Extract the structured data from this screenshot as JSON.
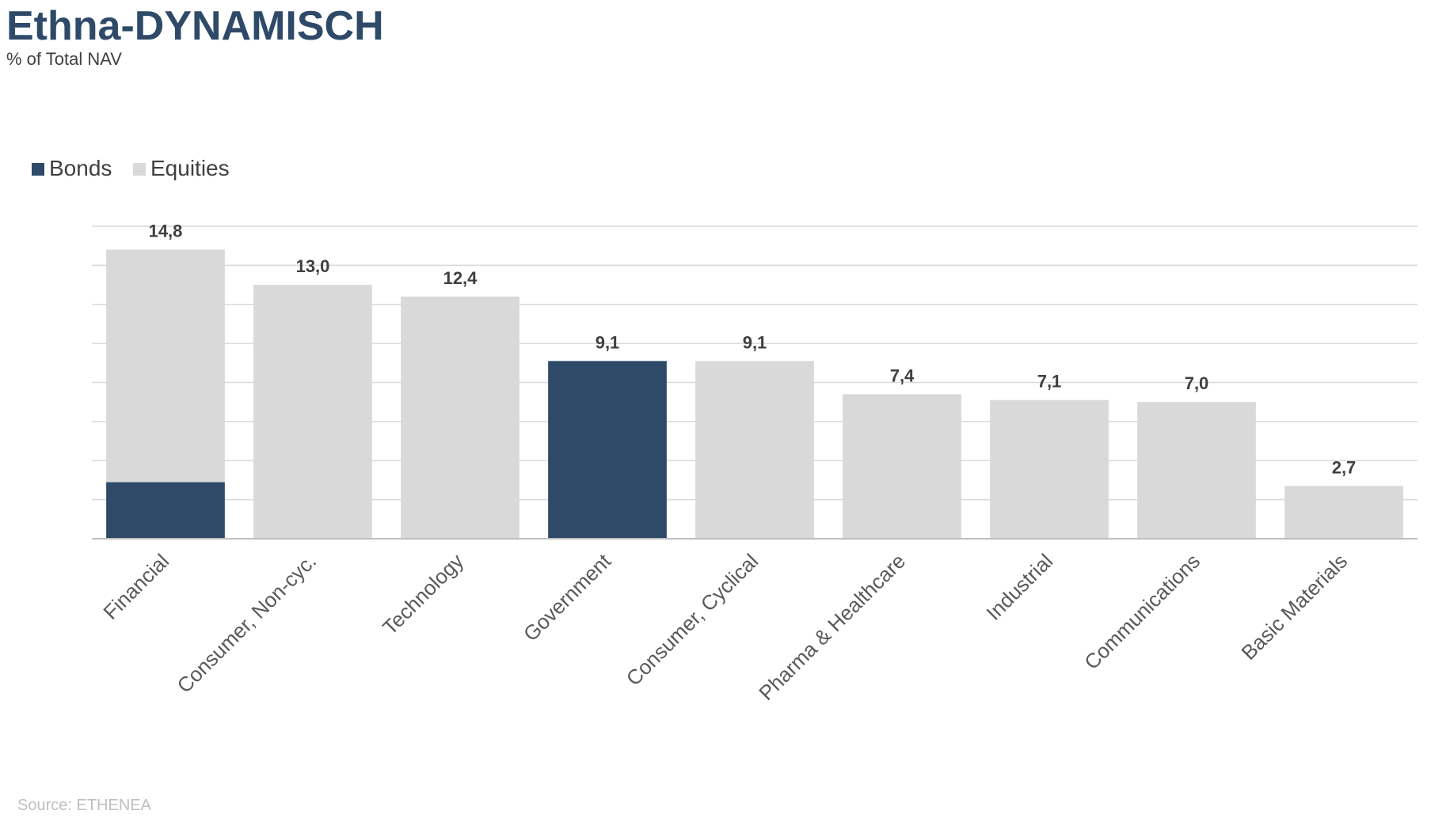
{
  "chart_data": {
    "type": "bar",
    "stacked": true,
    "title": "Ethna-DYNAMISCH",
    "subtitle": "% of Total NAV",
    "categories": [
      "Financial",
      "Consumer, Non-cyc.",
      "Technology",
      "Government",
      "Consumer, Cyclical",
      "Pharma & Healthcare",
      "Industrial",
      "Communications",
      "Basic Materials"
    ],
    "series": [
      {
        "name": "Bonds",
        "color": "#2e4a68",
        "values": [
          2.9,
          0,
          0,
          9.1,
          0,
          0,
          0,
          0,
          0
        ]
      },
      {
        "name": "Equities",
        "color": "#d9d9d9",
        "values": [
          11.9,
          13.0,
          12.4,
          0,
          9.1,
          7.4,
          7.1,
          7.0,
          2.7
        ]
      }
    ],
    "totals_labels": [
      "14,8",
      "13,0",
      "12,4",
      "9,1",
      "9,1",
      "7,4",
      "7,1",
      "7,0",
      "2,7"
    ],
    "ylim": [
      0,
      16
    ],
    "y_gridlines": true,
    "y_tick_labels_shown": false,
    "legend_position": "top-left",
    "source": "Source: ETHENEA",
    "colors": {
      "title": "#2e4a68",
      "gridline": "#d9d9d9",
      "axis": "#bfbfbf"
    }
  }
}
